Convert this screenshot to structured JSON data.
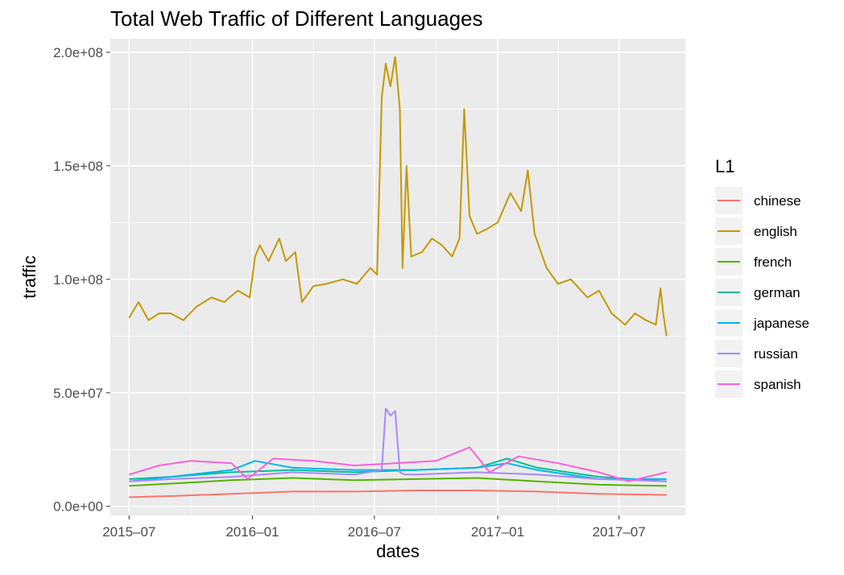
{
  "chart_data": {
    "type": "line",
    "title": "Total Web Traffic of Different Languages",
    "xlabel": "dates",
    "ylabel": "traffic",
    "x_start": "2015-07-01",
    "x_end": "2017-09-10",
    "xlim": [
      "2015-06-03",
      "2017-10-08"
    ],
    "ylim": [
      -4000000,
      206000000
    ],
    "x_ticks": [
      "2015-07-01",
      "2016-01-01",
      "2016-07-01",
      "2017-01-01",
      "2017-07-01"
    ],
    "x_tick_labels": [
      "2015–07",
      "2016–01",
      "2016–07",
      "2017–01",
      "2017–07"
    ],
    "y_ticks": [
      0,
      50000000,
      100000000,
      150000000,
      200000000
    ],
    "y_tick_labels": [
      "0.0e+00",
      "5.0e+07",
      "1.0e+08",
      "1.5e+08",
      "2.0e+08"
    ],
    "grid": true,
    "legend": {
      "title": "L1",
      "position": "right"
    },
    "series": [
      {
        "name": "chinese",
        "color": "#F8766D",
        "x": [
          "2015-07-01",
          "2015-09-01",
          "2015-12-01",
          "2016-03-01",
          "2016-06-01",
          "2016-09-01",
          "2016-12-01",
          "2017-03-01",
          "2017-06-01",
          "2017-09-10"
        ],
        "values": [
          4000000,
          4500000,
          5500000,
          6500000,
          6500000,
          7000000,
          7000000,
          6500000,
          5500000,
          5000000
        ]
      },
      {
        "name": "english",
        "color": "#C49A00",
        "x": [
          "2015-07-01",
          "2015-07-15",
          "2015-07-30",
          "2015-08-15",
          "2015-09-01",
          "2015-09-20",
          "2015-10-10",
          "2015-11-01",
          "2015-11-20",
          "2015-12-10",
          "2015-12-28",
          "2016-01-05",
          "2016-01-12",
          "2016-01-25",
          "2016-02-10",
          "2016-02-20",
          "2016-03-05",
          "2016-03-15",
          "2016-04-01",
          "2016-04-20",
          "2016-05-15",
          "2016-06-05",
          "2016-06-25",
          "2016-07-05",
          "2016-07-12",
          "2016-07-18",
          "2016-07-25",
          "2016-08-01",
          "2016-08-08",
          "2016-08-12",
          "2016-08-18",
          "2016-08-25",
          "2016-09-10",
          "2016-09-25",
          "2016-10-10",
          "2016-10-25",
          "2016-11-05",
          "2016-11-12",
          "2016-11-20",
          "2016-12-01",
          "2016-12-15",
          "2017-01-01",
          "2017-01-20",
          "2017-02-05",
          "2017-02-15",
          "2017-02-25",
          "2017-03-15",
          "2017-04-01",
          "2017-04-20",
          "2017-05-15",
          "2017-06-01",
          "2017-06-20",
          "2017-07-10",
          "2017-07-25",
          "2017-08-10",
          "2017-08-25",
          "2017-09-01",
          "2017-09-05",
          "2017-09-10"
        ],
        "values": [
          83000000,
          90000000,
          82000000,
          85000000,
          85000000,
          82000000,
          88000000,
          92000000,
          90000000,
          95000000,
          92000000,
          110000000,
          115000000,
          108000000,
          118000000,
          108000000,
          112000000,
          90000000,
          97000000,
          98000000,
          100000000,
          98000000,
          105000000,
          102000000,
          180000000,
          195000000,
          185000000,
          198000000,
          175000000,
          105000000,
          150000000,
          110000000,
          112000000,
          118000000,
          115000000,
          110000000,
          118000000,
          175000000,
          128000000,
          120000000,
          122000000,
          125000000,
          138000000,
          130000000,
          148000000,
          120000000,
          105000000,
          98000000,
          100000000,
          92000000,
          95000000,
          85000000,
          80000000,
          85000000,
          82000000,
          80000000,
          96000000,
          85000000,
          75000000
        ]
      },
      {
        "name": "french",
        "color": "#53B400",
        "x": [
          "2015-07-01",
          "2015-09-01",
          "2015-12-01",
          "2016-03-01",
          "2016-06-01",
          "2016-09-01",
          "2016-12-01",
          "2017-03-01",
          "2017-06-01",
          "2017-09-10"
        ],
        "values": [
          9000000,
          10000000,
          11500000,
          12500000,
          11500000,
          12000000,
          12500000,
          11000000,
          9500000,
          9000000
        ]
      },
      {
        "name": "german",
        "color": "#00C094",
        "x": [
          "2015-07-01",
          "2015-09-01",
          "2015-12-01",
          "2016-03-01",
          "2016-06-01",
          "2016-09-01",
          "2016-12-01",
          "2017-01-15",
          "2017-03-01",
          "2017-06-01",
          "2017-09-10"
        ],
        "values": [
          12000000,
          13000000,
          15000000,
          16000000,
          15000000,
          16000000,
          17000000,
          21000000,
          17000000,
          13000000,
          11000000
        ]
      },
      {
        "name": "japanese",
        "color": "#00B6EB",
        "x": [
          "2015-07-01",
          "2015-09-01",
          "2015-12-01",
          "2016-01-05",
          "2016-03-01",
          "2016-06-01",
          "2016-09-01",
          "2016-12-01",
          "2017-01-15",
          "2017-03-01",
          "2017-06-01",
          "2017-09-10"
        ],
        "values": [
          11000000,
          13000000,
          16000000,
          20000000,
          17000000,
          16000000,
          16000000,
          17000000,
          19000000,
          16000000,
          12000000,
          12000000
        ]
      },
      {
        "name": "russian",
        "color": "#A58AFF",
        "x": [
          "2015-07-01",
          "2015-09-01",
          "2015-12-01",
          "2016-03-01",
          "2016-06-01",
          "2016-07-12",
          "2016-07-18",
          "2016-07-25",
          "2016-08-01",
          "2016-08-08",
          "2016-08-15",
          "2016-09-01",
          "2016-12-01",
          "2017-03-01",
          "2017-06-01",
          "2017-09-10"
        ],
        "values": [
          11000000,
          12000000,
          13000000,
          15000000,
          14000000,
          16000000,
          43000000,
          40000000,
          42000000,
          15000000,
          14000000,
          14000000,
          15000000,
          14000000,
          12000000,
          11000000
        ]
      },
      {
        "name": "spanish",
        "color": "#FB61D7",
        "x": [
          "2015-07-01",
          "2015-08-15",
          "2015-10-01",
          "2015-12-01",
          "2015-12-25",
          "2016-02-01",
          "2016-04-01",
          "2016-06-01",
          "2016-08-01",
          "2016-10-01",
          "2016-11-20",
          "2016-12-20",
          "2017-02-01",
          "2017-04-01",
          "2017-06-01",
          "2017-07-15",
          "2017-09-10"
        ],
        "values": [
          14000000,
          18000000,
          20000000,
          19000000,
          12000000,
          21000000,
          20000000,
          18000000,
          19000000,
          20000000,
          26000000,
          15000000,
          22000000,
          19000000,
          15000000,
          11000000,
          15000000
        ]
      }
    ]
  }
}
